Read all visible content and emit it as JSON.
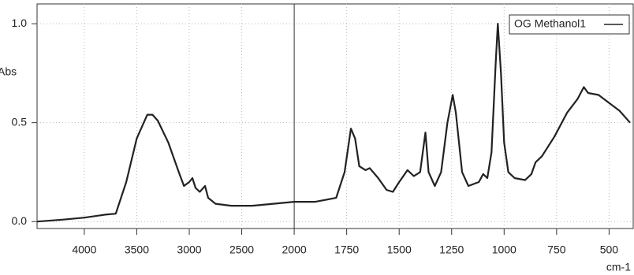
{
  "chart_data": {
    "type": "line",
    "y_label": "Abs",
    "x_label": "cm-1",
    "x_scale_break": 2000,
    "grid": true,
    "legend": "top-right",
    "x": [
      4450,
      4200,
      4000,
      3800,
      3700,
      3600,
      3500,
      3400,
      3350,
      3300,
      3200,
      3100,
      3050,
      3000,
      2970,
      2940,
      2900,
      2850,
      2820,
      2750,
      2600,
      2400,
      2200,
      2000,
      1900,
      1800,
      1760,
      1730,
      1710,
      1690,
      1660,
      1640,
      1600,
      1560,
      1530,
      1500,
      1460,
      1430,
      1400,
      1375,
      1360,
      1330,
      1300,
      1270,
      1245,
      1230,
      1200,
      1170,
      1120,
      1100,
      1080,
      1060,
      1040,
      1030,
      1015,
      1000,
      980,
      950,
      900,
      870,
      850,
      820,
      760,
      700,
      650,
      620,
      600,
      550,
      500,
      450,
      400
    ],
    "series": [
      {
        "name": "OG Methanol1",
        "color": "#222222",
        "values": [
          0.0,
          0.01,
          0.02,
          0.035,
          0.04,
          0.2,
          0.42,
          0.54,
          0.54,
          0.51,
          0.4,
          0.25,
          0.18,
          0.2,
          0.22,
          0.17,
          0.15,
          0.18,
          0.12,
          0.09,
          0.08,
          0.08,
          0.09,
          0.1,
          0.1,
          0.12,
          0.25,
          0.47,
          0.42,
          0.28,
          0.26,
          0.27,
          0.22,
          0.16,
          0.15,
          0.2,
          0.26,
          0.23,
          0.25,
          0.45,
          0.25,
          0.18,
          0.25,
          0.5,
          0.64,
          0.55,
          0.25,
          0.18,
          0.2,
          0.24,
          0.22,
          0.35,
          0.8,
          1.0,
          0.75,
          0.4,
          0.25,
          0.22,
          0.21,
          0.24,
          0.3,
          0.33,
          0.43,
          0.55,
          0.62,
          0.68,
          0.65,
          0.64,
          0.6,
          0.56,
          0.5
        ]
      }
    ],
    "xlim": [
      4450,
      385
    ],
    "xticks": [
      4000,
      3500,
      3000,
      2500,
      2000,
      1750,
      1500,
      1250,
      1000,
      750,
      500
    ],
    "ylim": [
      -0.035,
      1.1
    ],
    "yticks": [
      {
        "value": 0.0,
        "label": "0.0"
      },
      0.5,
      {
        "value": 1.0,
        "label": "1.0"
      }
    ]
  }
}
